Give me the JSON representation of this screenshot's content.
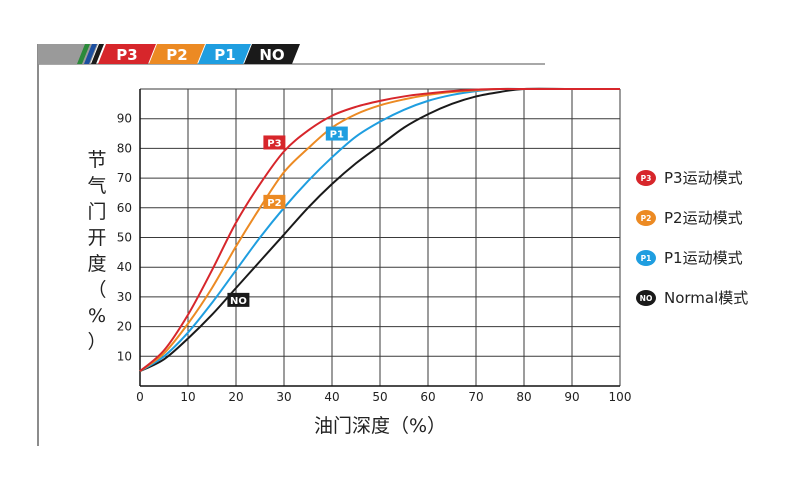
{
  "colors": {
    "p3": "#d7262b",
    "p2": "#ec8a23",
    "p1": "#1f9ee0",
    "no": "#1a1a1a",
    "frame": "#8c8c8c",
    "grid": "#3a3a3a",
    "stripe_green": "#2a8a3a",
    "stripe_blue": "#1c4fa0"
  },
  "header": {
    "badges": [
      {
        "key": "p3",
        "label": "P3"
      },
      {
        "key": "p2",
        "label": "P2"
      },
      {
        "key": "p1",
        "label": "P1"
      },
      {
        "key": "no",
        "label": "NO"
      }
    ]
  },
  "chart_data": {
    "type": "line",
    "xlabel": "油门深度（%）",
    "ylabel": "节气门开度（%）",
    "xlim": [
      0,
      100
    ],
    "ylim": [
      0,
      100
    ],
    "xticks": [
      "0",
      "10",
      "20",
      "30",
      "40",
      "50",
      "60",
      "70",
      "80",
      "90",
      "100"
    ],
    "yticks": [
      "10",
      "20",
      "30",
      "40",
      "50",
      "60",
      "70",
      "80",
      "90"
    ],
    "grid": true,
    "legend_position": "right",
    "series": [
      {
        "key": "p3",
        "name": "P3运动模式",
        "icon_label": "P3",
        "color": "#d7262b",
        "tag": {
          "label": "P3",
          "x": 28,
          "y": 82
        },
        "x": [
          0,
          5,
          10,
          15,
          20,
          25,
          30,
          35,
          40,
          45,
          50,
          55,
          60,
          65,
          70,
          75,
          80,
          90,
          100
        ],
        "y": [
          5,
          12,
          24,
          39,
          55,
          68,
          79,
          86,
          91,
          94,
          96,
          97.5,
          98.5,
          99.3,
          99.8,
          100,
          100,
          100,
          100
        ]
      },
      {
        "key": "p2",
        "name": "P2运动模式",
        "icon_label": "P2",
        "color": "#ec8a23",
        "tag": {
          "label": "P2",
          "x": 28,
          "y": 62
        },
        "x": [
          0,
          5,
          10,
          15,
          20,
          25,
          30,
          35,
          40,
          45,
          50,
          55,
          60,
          65,
          70,
          75,
          80,
          90,
          100
        ],
        "y": [
          5,
          11,
          21,
          33,
          47,
          60,
          72,
          80,
          87,
          91.5,
          94.5,
          96.5,
          98,
          99,
          99.6,
          100,
          100,
          100,
          100
        ]
      },
      {
        "key": "p1",
        "name": "P1运动模式",
        "icon_label": "P1",
        "color": "#1f9ee0",
        "tag": {
          "label": "P1",
          "x": 41,
          "y": 85
        },
        "x": [
          0,
          5,
          10,
          15,
          20,
          25,
          30,
          35,
          40,
          45,
          50,
          55,
          60,
          65,
          70,
          75,
          80,
          90,
          100
        ],
        "y": [
          5,
          10,
          18,
          28,
          39,
          50,
          60,
          69,
          77,
          84,
          89,
          93,
          96,
          98,
          99.3,
          100,
          100,
          100,
          100
        ]
      },
      {
        "key": "no",
        "name": "Normal模式",
        "icon_label": "NO",
        "color": "#1a1a1a",
        "tag": {
          "label": "NO",
          "x": 20.5,
          "y": 29
        },
        "x": [
          0,
          5,
          10,
          15,
          20,
          25,
          30,
          35,
          40,
          45,
          50,
          55,
          60,
          65,
          70,
          75,
          80,
          90,
          100
        ],
        "y": [
          5,
          9,
          16,
          24,
          33,
          42,
          51,
          60,
          68,
          75,
          81,
          87,
          91.5,
          95,
          97.5,
          99,
          100,
          100,
          100
        ]
      }
    ]
  }
}
